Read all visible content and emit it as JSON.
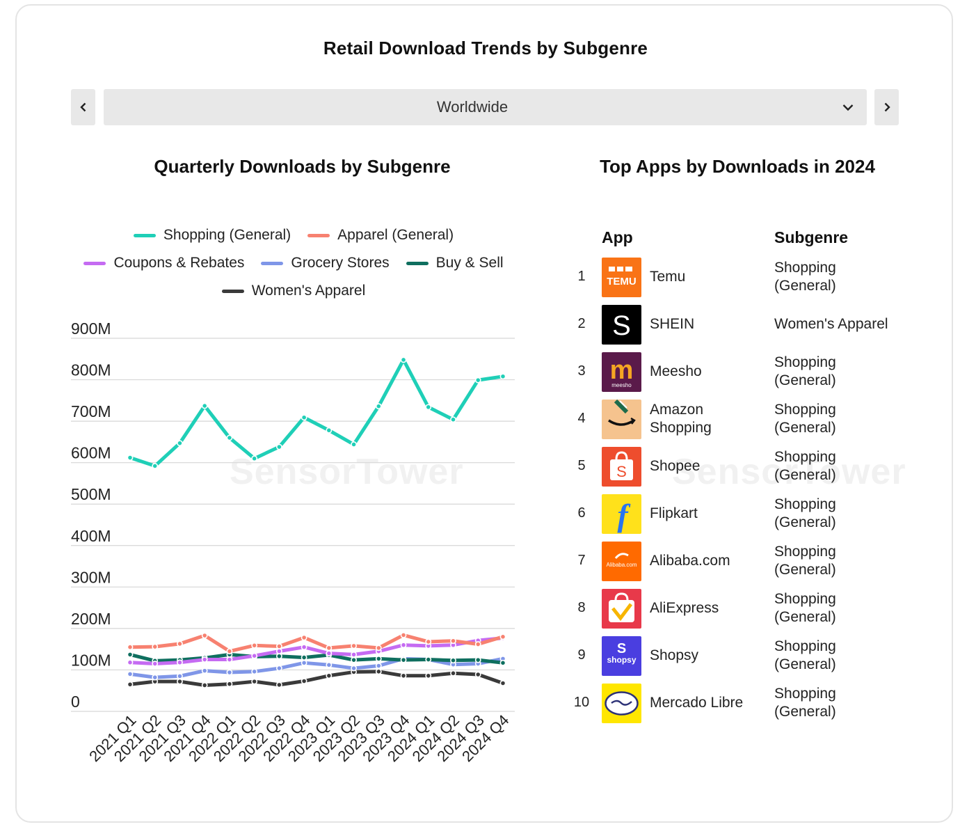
{
  "title": "Retail Download Trends by Subgenre",
  "region_selector": {
    "selected": "Worldwide"
  },
  "chart_title": "Quarterly Downloads by Subgenre",
  "table_title": "Top Apps by Downloads in 2024",
  "watermark": "SensorTower",
  "chart_data": {
    "type": "line",
    "title": "Quarterly Downloads by Subgenre",
    "xlabel": "",
    "ylabel": "",
    "ylim": [
      0,
      900
    ],
    "y_ticks": [
      0,
      100,
      200,
      300,
      400,
      500,
      600,
      700,
      800,
      900
    ],
    "y_tick_labels": [
      "0",
      "100M",
      "200M",
      "300M",
      "400M",
      "500M",
      "600M",
      "700M",
      "800M",
      "900M"
    ],
    "categories": [
      "2021 Q1",
      "2021 Q2",
      "2021 Q3",
      "2021 Q4",
      "2022 Q1",
      "2022 Q2",
      "2022 Q3",
      "2022 Q4",
      "2023 Q1",
      "2023 Q2",
      "2023 Q3",
      "2023 Q4",
      "2024 Q1",
      "2024 Q2",
      "2024 Q3",
      "2024 Q4"
    ],
    "legend_position": "top",
    "series": [
      {
        "name": "Shopping (General)",
        "color": "#1fcfb7",
        "values": [
          612,
          592,
          647,
          737,
          660,
          610,
          638,
          709,
          678,
          644,
          736,
          848,
          734,
          704,
          799,
          808
        ]
      },
      {
        "name": "Apparel (General)",
        "color": "#f78170",
        "values": [
          155,
          156,
          163,
          183,
          145,
          159,
          157,
          178,
          153,
          158,
          153,
          184,
          168,
          170,
          162,
          180
        ]
      },
      {
        "name": "Coupons & Rebates",
        "color": "#c56bf2",
        "values": [
          118,
          115,
          118,
          125,
          125,
          134,
          145,
          155,
          140,
          137,
          145,
          160,
          158,
          160,
          171,
          177
        ]
      },
      {
        "name": "Grocery Stores",
        "color": "#7f96e8",
        "values": [
          90,
          82,
          85,
          98,
          94,
          96,
          104,
          117,
          112,
          104,
          110,
          127,
          125,
          113,
          115,
          127
        ]
      },
      {
        "name": "Buy & Sell",
        "color": "#0f6f5f",
        "values": [
          137,
          122,
          124,
          129,
          137,
          132,
          133,
          130,
          136,
          124,
          127,
          124,
          125,
          123,
          124,
          117
        ]
      },
      {
        "name": "Women's Apparel",
        "color": "#3a3a3a",
        "values": [
          65,
          72,
          72,
          63,
          66,
          72,
          64,
          73,
          86,
          95,
          96,
          86,
          86,
          92,
          89,
          68
        ]
      }
    ]
  },
  "table": {
    "headers": {
      "app": "App",
      "subgenre": "Subgenre"
    },
    "rows": [
      {
        "rank": "1",
        "name": "Temu",
        "subgenre": "Shopping (General)",
        "icon": "temu-icon",
        "icon_bg": "#f97316",
        "icon_text": "TEMU"
      },
      {
        "rank": "2",
        "name": "SHEIN",
        "subgenre": "Women's Apparel",
        "icon": "shein-icon",
        "icon_bg": "#000000",
        "icon_text": "S"
      },
      {
        "rank": "3",
        "name": "Meesho",
        "subgenre": "Shopping (General)",
        "icon": "meesho-icon",
        "icon_bg": "#5a1a4a",
        "icon_text": "m"
      },
      {
        "rank": "4",
        "name": "Amazon Shopping",
        "subgenre": "Shopping (General)",
        "icon": "amazon-icon",
        "icon_bg": "#f5c38e",
        "icon_text": ""
      },
      {
        "rank": "5",
        "name": "Shopee",
        "subgenre": "Shopping (General)",
        "icon": "shopee-icon",
        "icon_bg": "#ee4d2d",
        "icon_text": "S"
      },
      {
        "rank": "6",
        "name": "Flipkart",
        "subgenre": "Shopping (General)",
        "icon": "flipkart-icon",
        "icon_bg": "#ffe11b",
        "icon_text": "f"
      },
      {
        "rank": "7",
        "name": "Alibaba.com",
        "subgenre": "Shopping (General)",
        "icon": "alibaba-icon",
        "icon_bg": "#ff6a00",
        "icon_text": "Alibaba.com"
      },
      {
        "rank": "8",
        "name": "AliExpress",
        "subgenre": "Shopping (General)",
        "icon": "aliexpress-icon",
        "icon_bg": "#e8394a",
        "icon_text": ""
      },
      {
        "rank": "9",
        "name": "Shopsy",
        "subgenre": "Shopping (General)",
        "icon": "shopsy-icon",
        "icon_bg": "#4a3ee0",
        "icon_text": "shopsy"
      },
      {
        "rank": "10",
        "name": "Mercado Libre",
        "subgenre": "Shopping (General)",
        "icon": "mercadolibre-icon",
        "icon_bg": "#ffe600",
        "icon_text": ""
      }
    ]
  }
}
